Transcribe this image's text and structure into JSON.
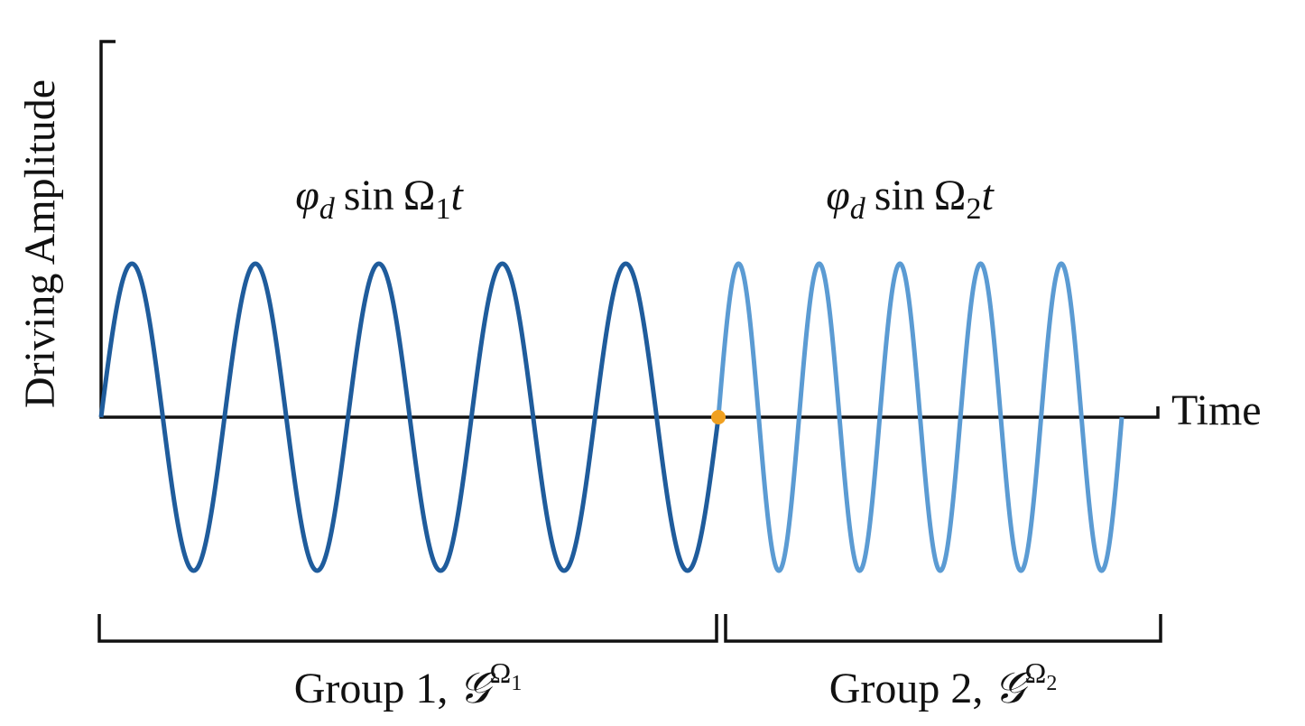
{
  "axes": {
    "y_label": "Driving Amplitude",
    "x_label": "Time"
  },
  "equations": [
    {
      "phi": "φ",
      "phi_sub": "d",
      "func": "sin",
      "omega": "Ω",
      "omega_sub": "1",
      "t": "t"
    },
    {
      "phi": "φ",
      "phi_sub": "d",
      "func": "sin",
      "omega": "Ω",
      "omega_sub": "2",
      "t": "t"
    }
  ],
  "groups": [
    {
      "label": "Group 1, ",
      "symbol": "𝒢",
      "sup": "Ω",
      "sup_sub": "1"
    },
    {
      "label": "Group 2, ",
      "symbol": "𝒢",
      "sup": "Ω",
      "sup_sub": "2"
    }
  ]
}
